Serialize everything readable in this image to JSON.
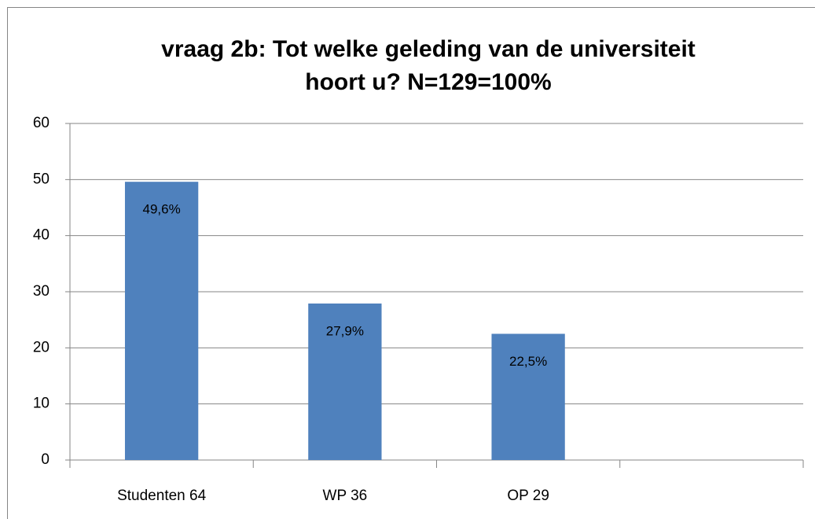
{
  "chart_data": {
    "type": "bar",
    "title": [
      "vraag 2b: Tot welke geleding van de universiteit",
      "hoort u? N=129=100%"
    ],
    "categories": [
      "Studenten 64",
      "WP 36",
      "OP 29",
      null
    ],
    "values": [
      49.6,
      27.9,
      22.5,
      null
    ],
    "value_labels": [
      "49,6%",
      "27,9%",
      "22,5%",
      null
    ],
    "color": "#4f81bd",
    "ylim": [
      0,
      60
    ],
    "yticks": [
      0,
      10,
      20,
      30,
      40,
      50,
      60
    ],
    "grid": true
  }
}
